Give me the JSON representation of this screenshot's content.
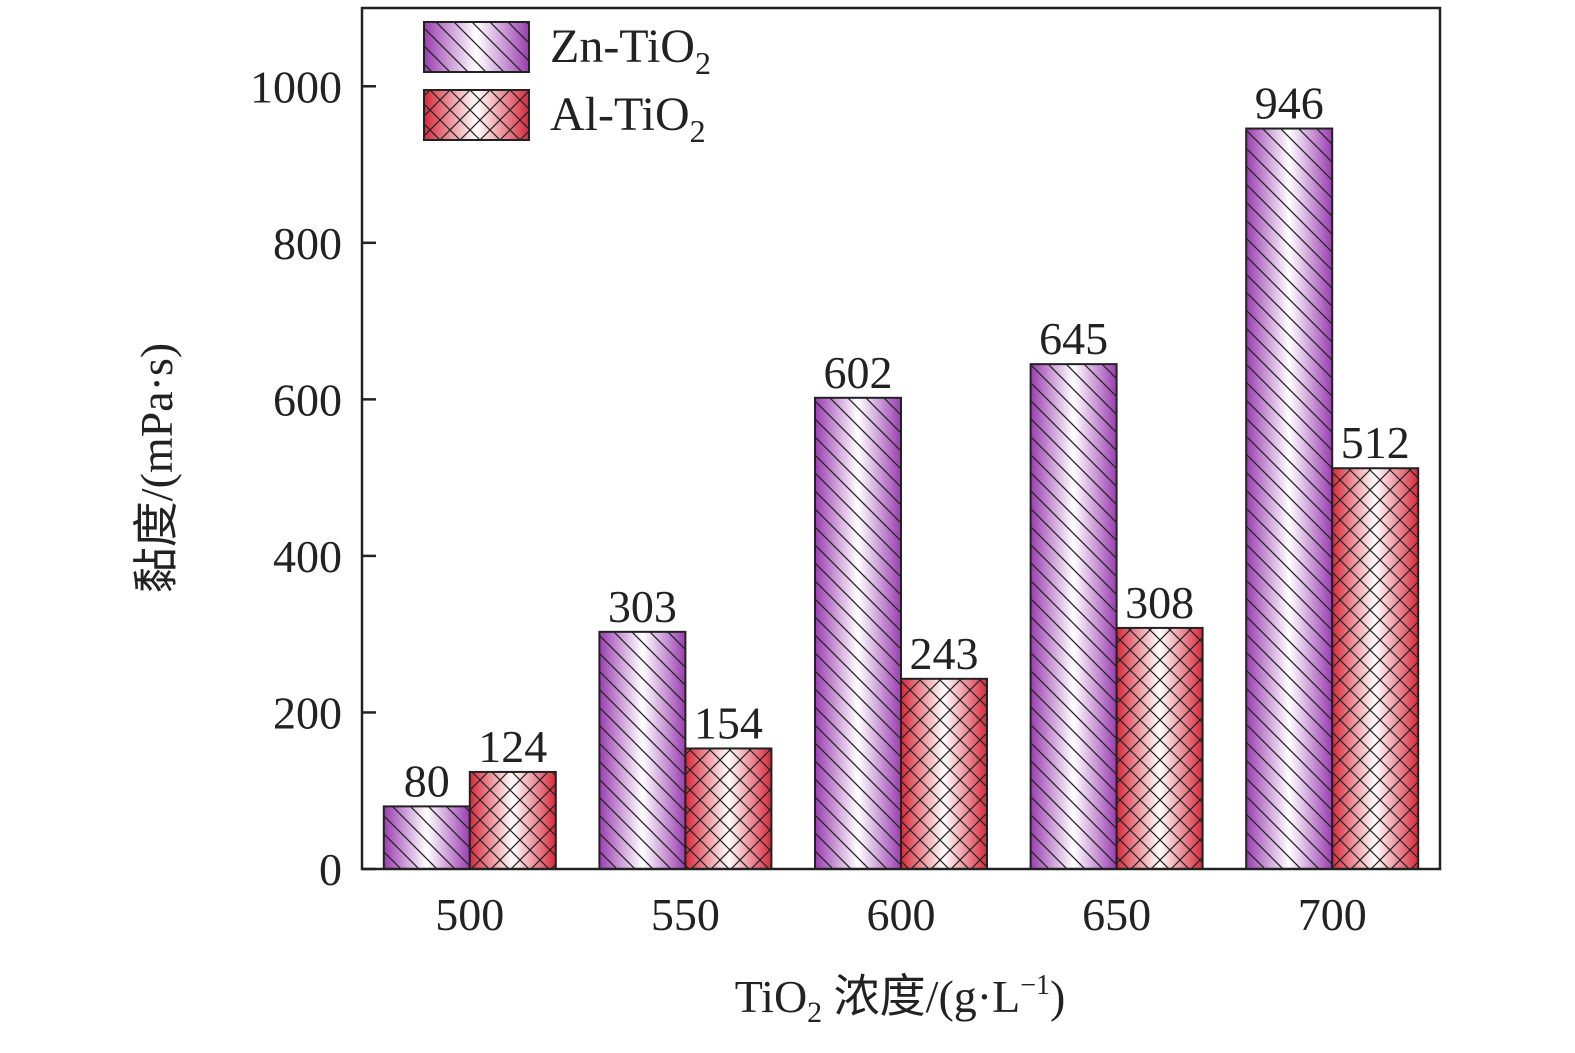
{
  "chart_data": {
    "type": "bar",
    "title": "",
    "xlabel": {
      "main": "TiO",
      "sub": "2",
      "rest": " 浓度/(g·L",
      "sup": "−1",
      "end": ")"
    },
    "ylabel": "黏度/(mPa·s)",
    "categories": [
      "500",
      "550",
      "600",
      "650",
      "700"
    ],
    "ylim": [
      0,
      1100
    ],
    "yticks": [
      0,
      200,
      400,
      600,
      800,
      1000
    ],
    "grid": false,
    "legend_position": "top-left",
    "series": [
      {
        "name": "Zn-TiO",
        "name_sub": "2",
        "values": [
          80,
          303,
          602,
          645,
          946
        ],
        "labels": [
          "80",
          "303",
          "602",
          "645",
          "946"
        ],
        "color": "#9a3db0",
        "pattern": "diagonal-hatch"
      },
      {
        "name": "Al-TiO",
        "name_sub": "2",
        "values": [
          124,
          154,
          243,
          308,
          512
        ],
        "labels": [
          "124",
          "154",
          "243",
          "308",
          "512"
        ],
        "color": "#d8283a",
        "pattern": "cross-hatch"
      }
    ]
  }
}
